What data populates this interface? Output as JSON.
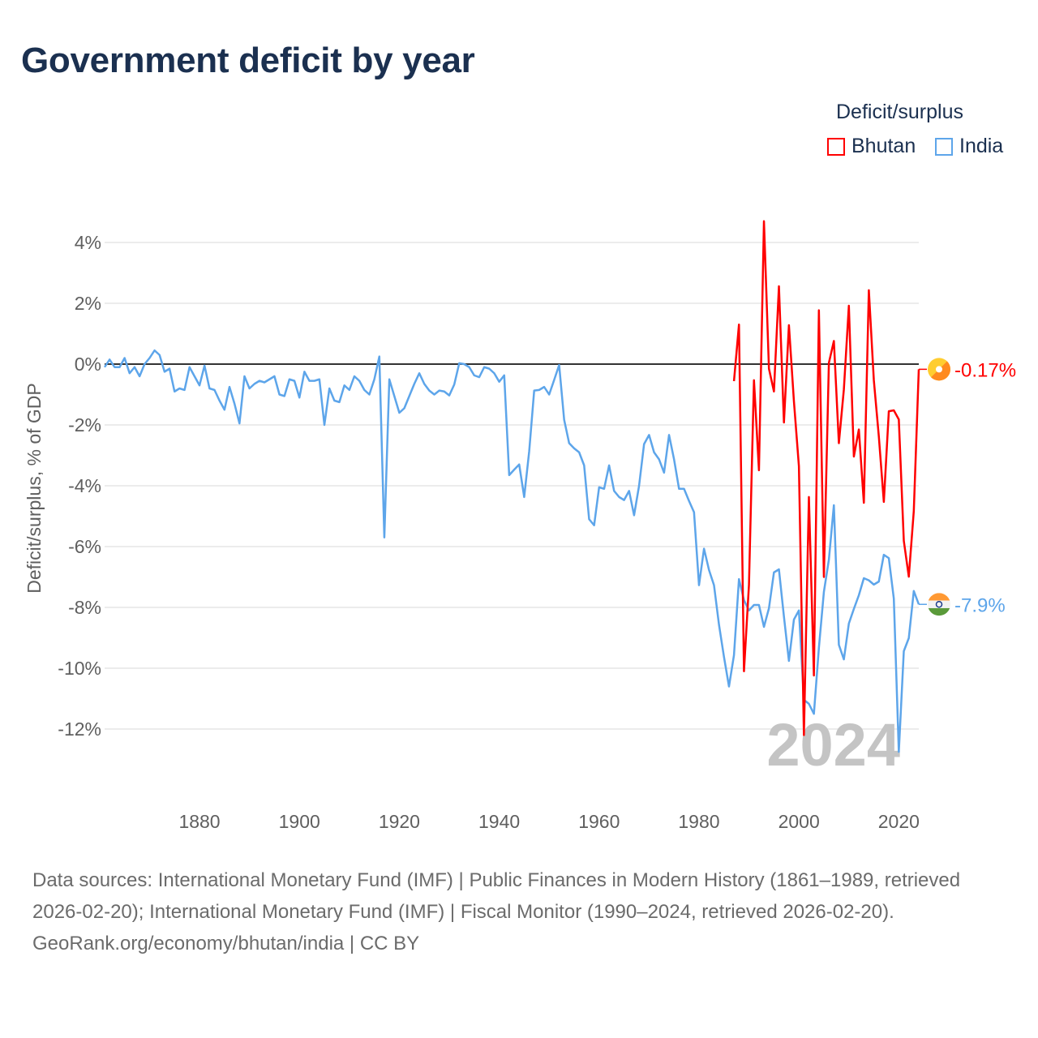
{
  "title": "Government deficit by year",
  "legend": {
    "title": "Deficit/surplus",
    "items": [
      "Bhutan",
      "India"
    ]
  },
  "footer": {
    "sources": "Data sources: International Monetary Fund (IMF) | Public Finances in Modern History (1861–1989, retrieved 2026-02-20); International Monetary Fund (IMF) | Fiscal Monitor (1990–2024, retrieved 2026-02-20).",
    "credit": "GeoRank.org/economy/bhutan/india | CC BY"
  },
  "chart_data": {
    "type": "line",
    "title": "Government deficit by year",
    "xlabel": "",
    "ylabel": "Deficit/surplus, % of GDP",
    "xlim": [
      1861,
      2024
    ],
    "ylim": [
      -13.5,
      4.8
    ],
    "x_ticks": [
      1880,
      1900,
      1920,
      1940,
      1960,
      1980,
      2000,
      2020
    ],
    "y_ticks": [
      4,
      2,
      0,
      -2,
      -4,
      -6,
      -8,
      -10,
      -12
    ],
    "y_tick_labels": [
      "4%",
      "2%",
      "0%",
      "-2%",
      "-4%",
      "-6%",
      "-8%",
      "-10%",
      "-12%"
    ],
    "year_watermark": "2024",
    "grid": true,
    "legend_position": "top-right",
    "series": [
      {
        "name": "Bhutan",
        "color": "#ff0000",
        "start_year": 1987,
        "end_label": "-0.17%",
        "flag": "bhutan-flag-icon",
        "values": [
          -0.56,
          1.3,
          -10.1,
          -7.26,
          -0.53,
          -3.49,
          4.7,
          -0.15,
          -0.9,
          2.56,
          -1.92,
          1.28,
          -1.22,
          -3.36,
          -12.2,
          -4.37,
          -10.24,
          1.77,
          -7.0,
          0.04,
          0.76,
          -2.6,
          -0.83,
          1.92,
          -3.04,
          -2.15,
          -4.56,
          2.43,
          -0.53,
          -2.38,
          -4.53,
          -1.55,
          -1.52,
          -1.82,
          -5.81,
          -6.99,
          -4.83,
          -0.17
        ]
      },
      {
        "name": "India",
        "color": "#5da5ea",
        "start_year": 1861,
        "end_label": "-7.9%",
        "flag": "india-flag-icon",
        "values": [
          -0.1,
          0.15,
          -0.1,
          -0.1,
          0.2,
          -0.3,
          -0.1,
          -0.4,
          0,
          0.2,
          0.45,
          0.3,
          -0.25,
          -0.15,
          -0.9,
          -0.8,
          -0.85,
          -0.1,
          -0.4,
          -0.7,
          -0.05,
          -0.8,
          -0.85,
          -1.2,
          -1.5,
          -0.75,
          -1.3,
          -1.95,
          -0.4,
          -0.8,
          -0.65,
          -0.55,
          -0.6,
          -0.5,
          -0.4,
          -1.0,
          -1.05,
          -0.5,
          -0.55,
          -1.1,
          -0.25,
          -0.55,
          -0.55,
          -0.5,
          -2.0,
          -0.8,
          -1.2,
          -1.25,
          -0.7,
          -0.85,
          -0.4,
          -0.55,
          -0.85,
          -1.0,
          -0.5,
          0.25,
          -5.7,
          -0.5,
          -1.05,
          -1.6,
          -1.45,
          -1.05,
          -0.65,
          -0.3,
          -0.65,
          -0.87,
          -1.0,
          -0.87,
          -0.9,
          -1.03,
          -0.67,
          0.03,
          0,
          -0.1,
          -0.37,
          -0.43,
          -0.1,
          -0.15,
          -0.3,
          -0.58,
          -0.37,
          -3.65,
          -3.47,
          -3.3,
          -4.37,
          -2.87,
          -0.87,
          -0.85,
          -0.75,
          -1.0,
          -0.52,
          -0.03,
          -1.83,
          -2.6,
          -2.77,
          -2.9,
          -3.33,
          -5.1,
          -5.3,
          -4.05,
          -4.1,
          -3.33,
          -4.17,
          -4.37,
          -4.47,
          -4.17,
          -4.97,
          -4.0,
          -2.63,
          -2.33,
          -2.9,
          -3.13,
          -3.57,
          -2.33,
          -3.13,
          -4.1,
          -4.1,
          -4.5,
          -4.87,
          -7.27,
          -6.07,
          -6.77,
          -7.27,
          -8.57,
          -9.63,
          -10.6,
          -9.57,
          -7.07,
          -7.76,
          -8.1,
          -7.92,
          -7.92,
          -8.64,
          -8.03,
          -6.85,
          -6.75,
          -8.3,
          -9.76,
          -8.4,
          -8.1,
          -11.04,
          -11.17,
          -11.5,
          -9.33,
          -7.49,
          -6.43,
          -4.64,
          -9.23,
          -9.71,
          -8.53,
          -8.05,
          -7.6,
          -7.04,
          -7.11,
          -7.25,
          -7.15,
          -6.27,
          -6.38,
          -7.71,
          -12.75,
          -9.44,
          -9.01,
          -7.46,
          -7.9
        ]
      }
    ]
  }
}
